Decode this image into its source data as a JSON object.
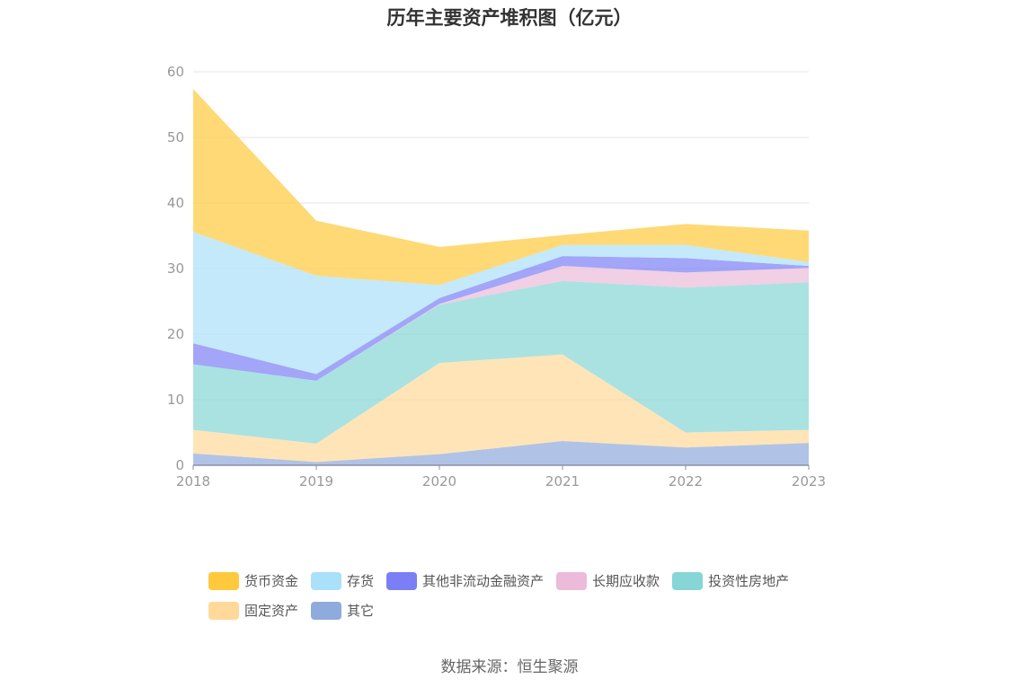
{
  "chart_data": {
    "type": "area",
    "title": "历年主要资产堆积图（亿元）",
    "x": [
      "2018",
      "2019",
      "2020",
      "2021",
      "2022",
      "2023"
    ],
    "ylim": [
      0,
      60
    ],
    "yticks": [
      0,
      10,
      20,
      30,
      40,
      50,
      60
    ],
    "grid": true,
    "stacked": true,
    "legend_position": "bottom",
    "series": [
      {
        "name": "其它",
        "color": "#8faadc",
        "values": [
          1.8,
          0.5,
          1.7,
          3.7,
          2.7,
          3.4
        ]
      },
      {
        "name": "固定资产",
        "color": "#ffd99a",
        "values": [
          3.6,
          2.8,
          13.9,
          13.2,
          2.3,
          2.0
        ]
      },
      {
        "name": "投资性房地产",
        "color": "#86d6d6",
        "values": [
          10.0,
          9.6,
          8.9,
          11.2,
          22.1,
          22.5
        ]
      },
      {
        "name": "长期应收款",
        "color": "#ebbbd9",
        "values": [
          0.0,
          0.0,
          0.1,
          2.3,
          2.3,
          2.2
        ]
      },
      {
        "name": "其他非流动金融资产",
        "color": "#7b7ff5",
        "values": [
          3.2,
          1.0,
          0.9,
          1.5,
          2.2,
          0.3
        ]
      },
      {
        "name": "存货",
        "color": "#a9e0fa",
        "values": [
          17.0,
          15.0,
          2.0,
          1.7,
          2.0,
          0.6
        ]
      },
      {
        "name": "货币资金",
        "color": "#ffc93c",
        "values": [
          21.8,
          8.4,
          5.8,
          1.5,
          3.2,
          4.8
        ]
      }
    ]
  },
  "legend": {
    "row1": [
      "货币资金",
      "存货",
      "其他非流动金融资产",
      "长期应收款",
      "投资性房地产"
    ],
    "row2": [
      "固定资产",
      "其它"
    ],
    "colors": {
      "货币资金": "#ffc93c",
      "存货": "#a9e0fa",
      "其他非流动金融资产": "#7b7ff5",
      "长期应收款": "#ebbbd9",
      "投资性房地产": "#86d6d6",
      "固定资产": "#ffd99a",
      "其它": "#8faadc"
    }
  },
  "source": "数据来源：恒生聚源"
}
